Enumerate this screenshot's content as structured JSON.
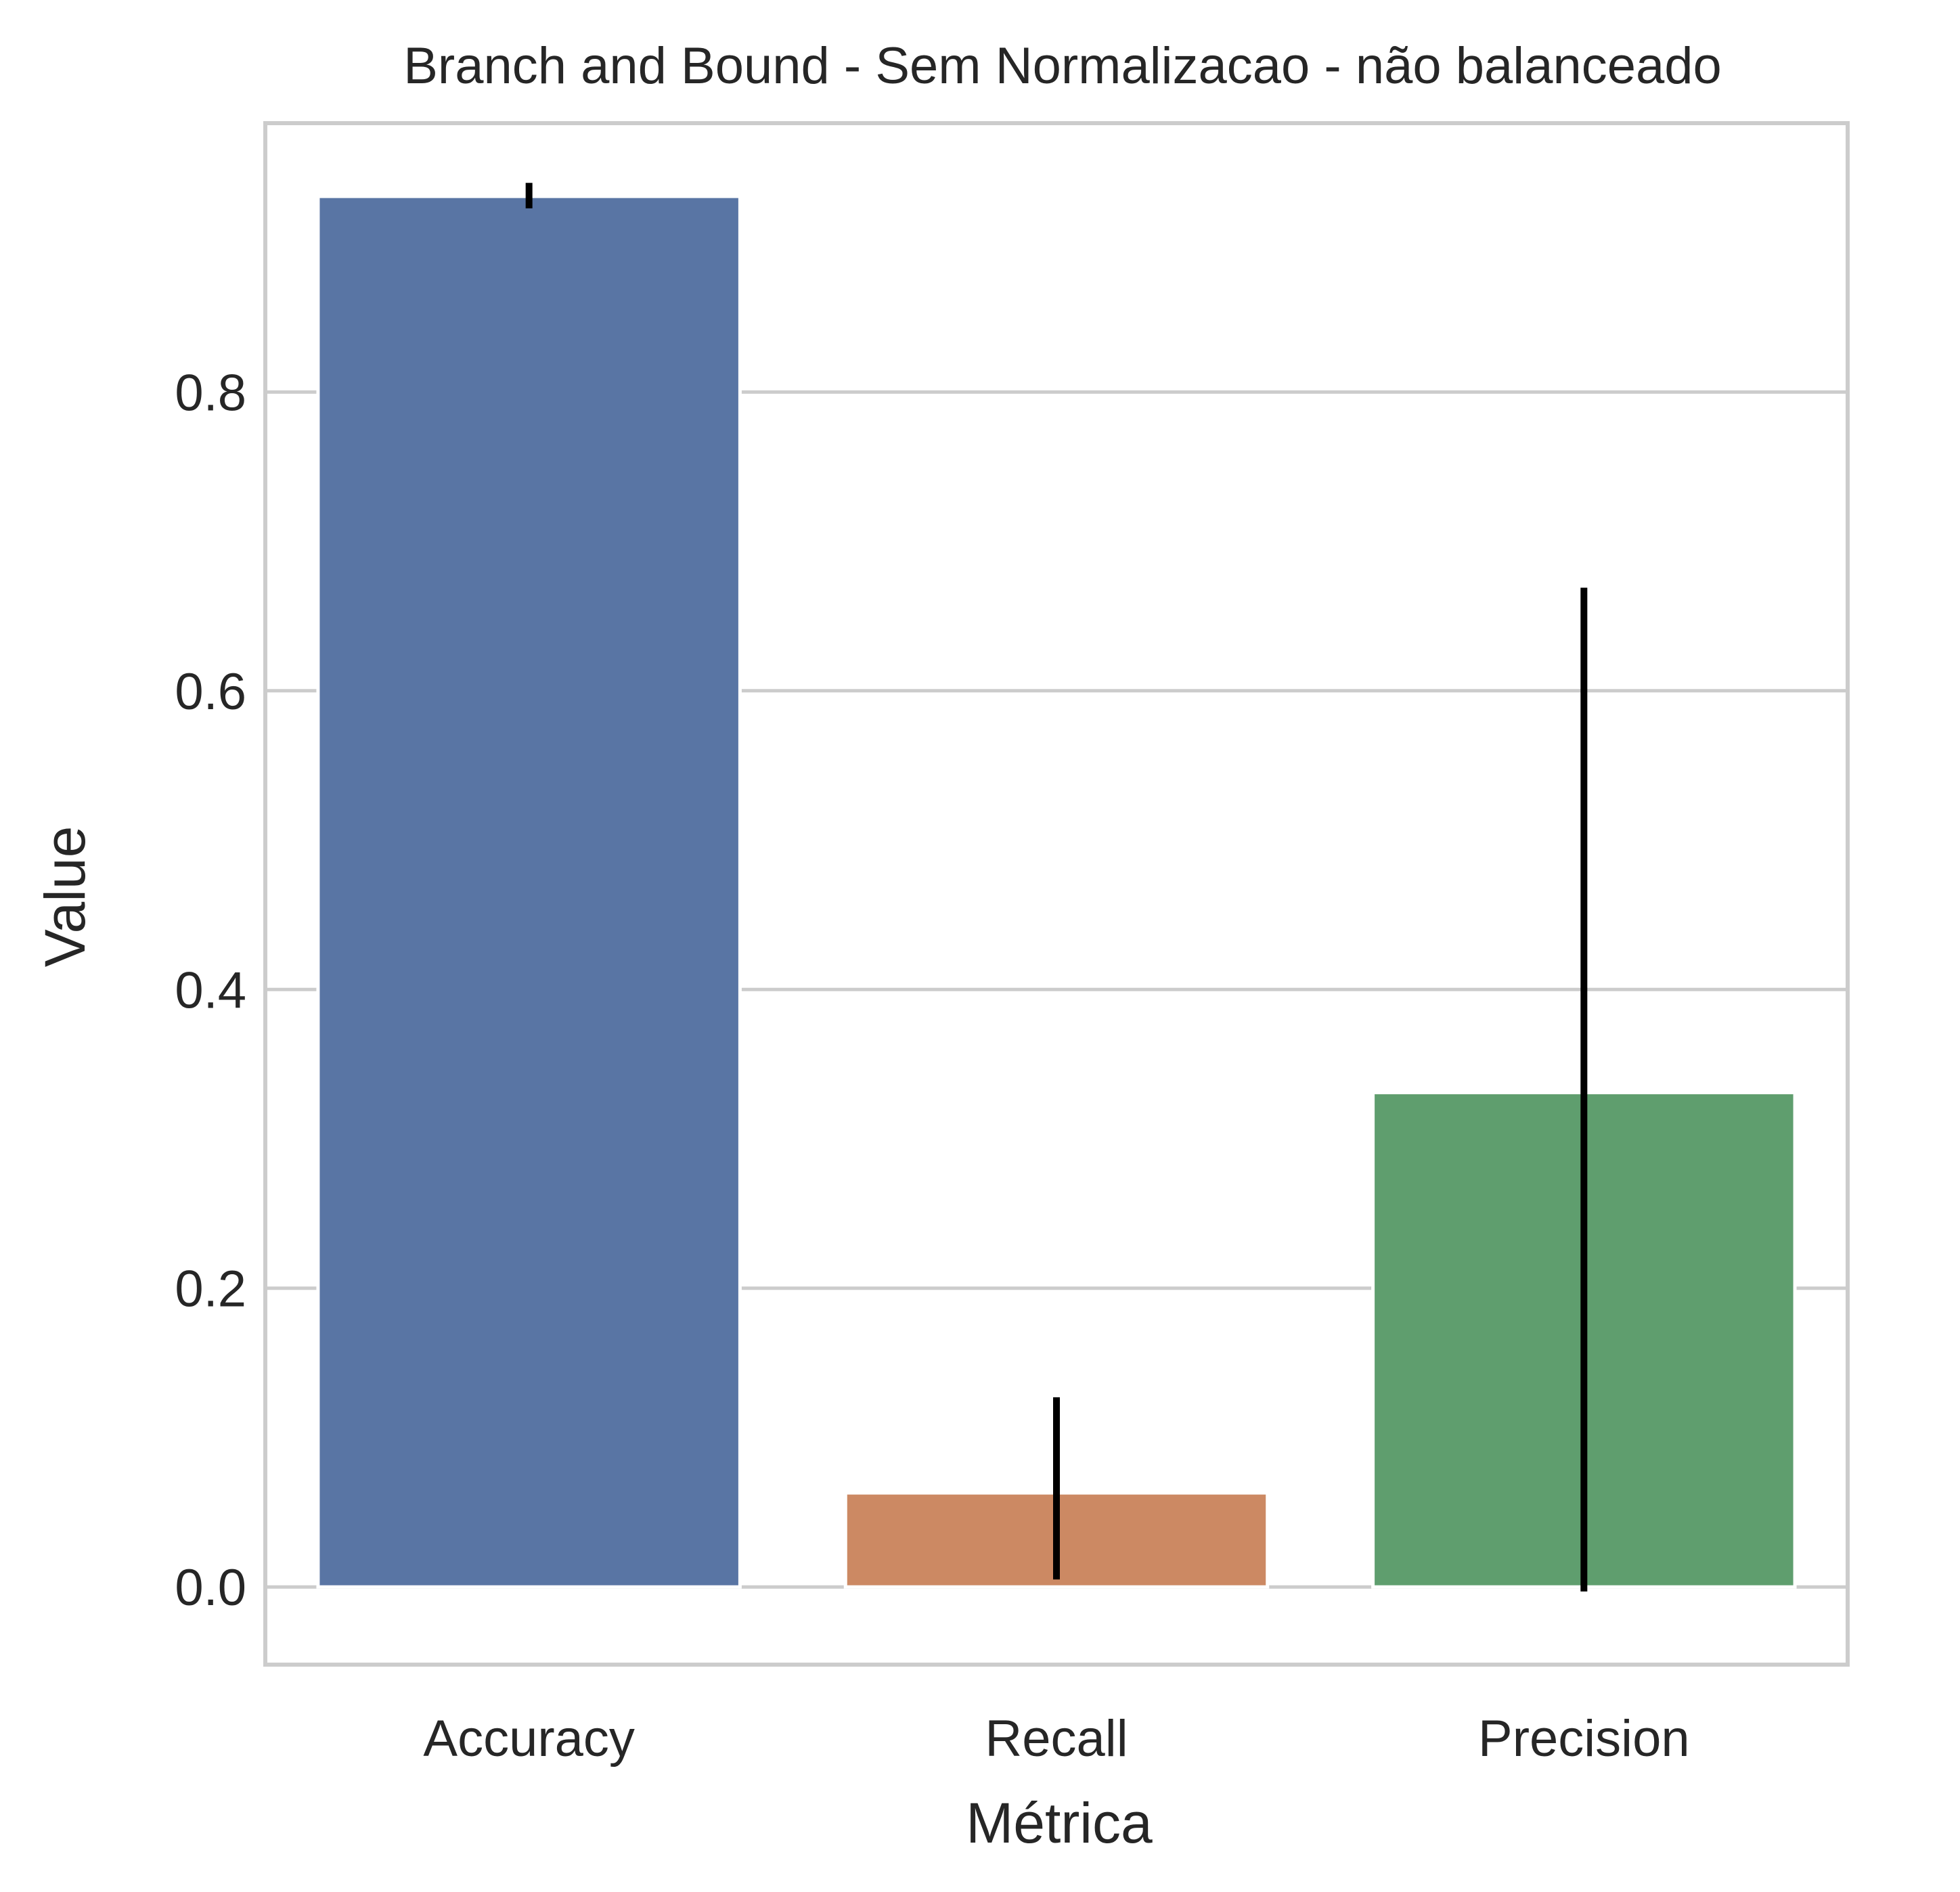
{
  "chart_data": {
    "type": "bar",
    "title": "Branch and Bound - Sem Normalizacao - não balanceado",
    "xlabel": "Métrica",
    "ylabel": "Value",
    "categories": [
      "Accuracy",
      "Recall",
      "Precision"
    ],
    "values": [
      0.931,
      0.063,
      0.331
    ],
    "error_bars": [
      {
        "low": 0.923,
        "high": 0.94
      },
      {
        "low": 0.005,
        "high": 0.127
      },
      {
        "low": -0.003,
        "high": 0.669
      }
    ],
    "colors": [
      "#5975a4",
      "#cc8963",
      "#5f9e6e"
    ],
    "error_bar_color": "#000000",
    "ylim": [
      -0.052,
      0.98
    ],
    "yticks": [
      0.0,
      0.2,
      0.4,
      0.6,
      0.8
    ],
    "ytick_labels": [
      "0.0",
      "0.2",
      "0.4",
      "0.6",
      "0.8"
    ],
    "grid": "horizontal",
    "legend": "none",
    "frame_color": "#cccccc"
  }
}
